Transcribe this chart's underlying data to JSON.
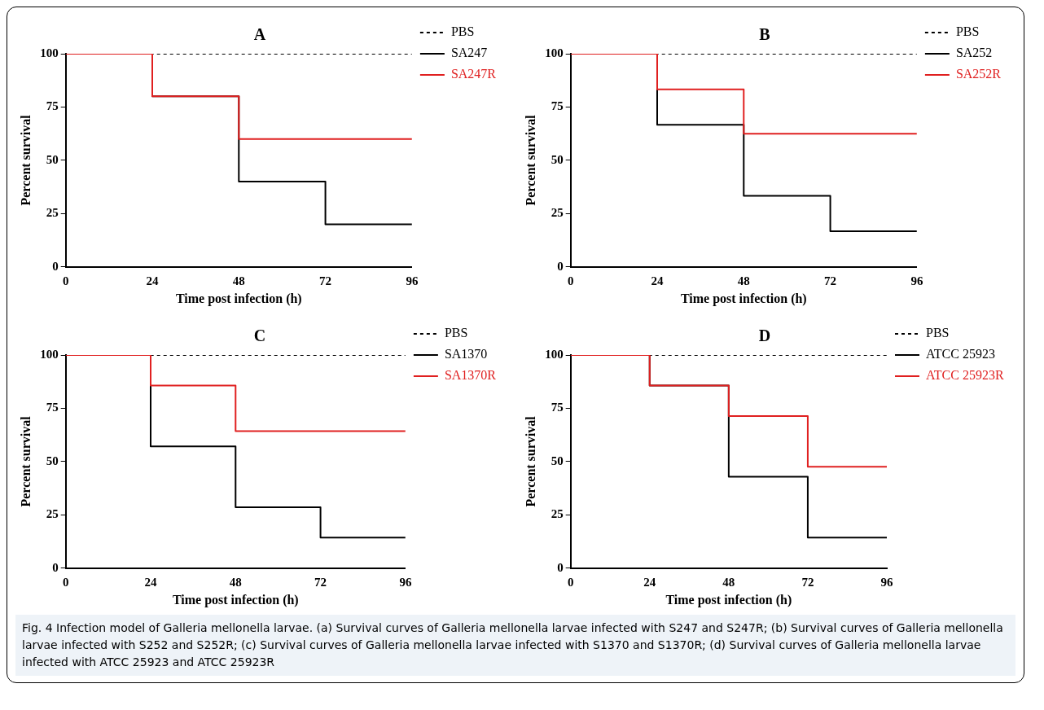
{
  "chart_data": [
    {
      "type": "step",
      "title": "A",
      "xlabel": "Time post infection (h)",
      "ylabel": "Percent survival",
      "x": [
        0,
        24,
        48,
        72,
        96
      ],
      "xlim": [
        0,
        96
      ],
      "xticks": [
        0,
        24,
        48,
        72,
        96
      ],
      "ylim": [
        0,
        100
      ],
      "yticks": [
        0,
        25,
        50,
        75,
        100
      ],
      "grid": false,
      "legend": "right",
      "series": [
        {
          "name": "PBS",
          "color": "#000000",
          "line_style": "dashed",
          "values": [
            100,
            100,
            100,
            100,
            100
          ]
        },
        {
          "name": "SA247",
          "color": "#000000",
          "values": [
            100,
            80,
            40,
            20,
            20
          ]
        },
        {
          "name": "SA247R",
          "color": "#e02020",
          "values": [
            100,
            80,
            60,
            60,
            60
          ]
        }
      ],
      "annotations": [
        "Fig. 4 Infection model of Galleria mellonella larvae. (a) Survival curves of Galleria mellonella larvae infected with S247 and S247R; (b) Survival curves of Galleria mellonella larvae infected with S252 and S252R; (c) Survival curves of Galleria mellonella larvae infected with S1370 and S1370R; (d) Survival curves of Galleria mellonella larvae infected with ATCC 25923 and ATCC 25923R"
      ]
    },
    {
      "type": "step",
      "title": "B",
      "xlabel": "Time post infection (h)",
      "ylabel": "Percent survival",
      "x": [
        0,
        24,
        48,
        72,
        96
      ],
      "xlim": [
        0,
        96
      ],
      "xticks": [
        0,
        24,
        48,
        72,
        96
      ],
      "ylim": [
        0,
        100
      ],
      "yticks": [
        0,
        25,
        50,
        75,
        100
      ],
      "grid": false,
      "legend": "right",
      "series": [
        {
          "name": "PBS",
          "color": "#000000",
          "line_style": "dashed",
          "values": [
            100,
            100,
            100,
            100,
            100
          ]
        },
        {
          "name": "SA252",
          "color": "#000000",
          "values": [
            100,
            66.7,
            33.3,
            16.7,
            16.7
          ]
        },
        {
          "name": "SA252R",
          "color": "#e02020",
          "values": [
            100,
            83.3,
            62.5,
            62.5,
            62.5
          ]
        }
      ]
    },
    {
      "type": "step",
      "title": "C",
      "xlabel": "Time post infection (h)",
      "ylabel": "Percent survival",
      "x": [
        0,
        24,
        48,
        72,
        96
      ],
      "xlim": [
        0,
        96
      ],
      "xticks": [
        0,
        24,
        48,
        72,
        96
      ],
      "ylim": [
        0,
        100
      ],
      "yticks": [
        0,
        25,
        50,
        75,
        100
      ],
      "grid": false,
      "legend": "right",
      "series": [
        {
          "name": "PBS",
          "color": "#000000",
          "line_style": "dashed",
          "values": [
            100,
            100,
            100,
            100,
            100
          ]
        },
        {
          "name": "SA1370",
          "color": "#000000",
          "values": [
            100,
            57.1,
            28.6,
            14.3,
            14.3
          ]
        },
        {
          "name": "SA1370R",
          "color": "#e02020",
          "values": [
            100,
            85.7,
            64.3,
            64.3,
            64.3
          ]
        }
      ]
    },
    {
      "type": "step",
      "title": "D",
      "xlabel": "Time post infection (h)",
      "ylabel": "Percent survival",
      "x": [
        0,
        24,
        48,
        72,
        96
      ],
      "xlim": [
        0,
        96
      ],
      "xticks": [
        0,
        24,
        48,
        72,
        96
      ],
      "ylim": [
        0,
        100
      ],
      "yticks": [
        0,
        25,
        50,
        75,
        100
      ],
      "grid": false,
      "legend": "right",
      "series": [
        {
          "name": "PBS",
          "color": "#000000",
          "line_style": "dashed",
          "values": [
            100,
            100,
            100,
            100,
            100
          ]
        },
        {
          "name": "ATCC 25923",
          "color": "#000000",
          "values": [
            100,
            85.7,
            42.9,
            14.3,
            14.3
          ]
        },
        {
          "name": "ATCC 25923R",
          "color": "#e02020",
          "values": [
            100,
            85.7,
            71.4,
            47.6,
            47.6
          ]
        }
      ]
    }
  ]
}
